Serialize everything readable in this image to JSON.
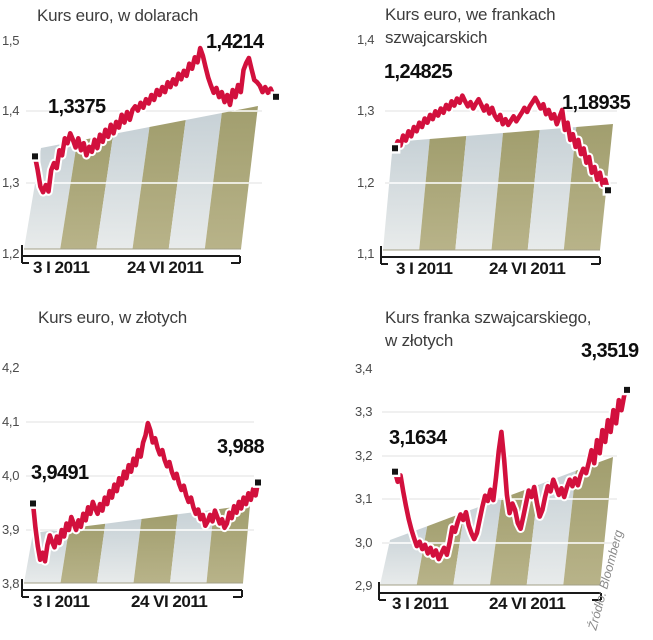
{
  "source_credit": "Źródło: Bloomberg",
  "colors": {
    "line": "#d2103d",
    "line_casing": "#ffffff",
    "marker": "#141414",
    "stripe_light_top": "#c7d1d6",
    "stripe_light_bottom": "#e8ebeb",
    "stripe_olive_top": "#a19e6e",
    "stripe_olive_bottom": "#b8b389",
    "grid_faint": "#e2e2e2",
    "grid_on_plane": "#ffffff",
    "plane_bottom_edge": "#a3a087",
    "axis": "#1a1a1a",
    "title_text": "#3d3d3d",
    "tick_text": "#4b4b4b",
    "source_text": "#8a8a8a"
  },
  "chart_data": [
    {
      "type": "line",
      "title": "Kurs euro, w dolarach",
      "title_lines": [
        "Kurs euro, w dolarach"
      ],
      "x_tick_labels": [
        "3 I 2011",
        "24 VI 2011"
      ],
      "y_tick_labels": [
        "1,5",
        "1,4",
        "1,3",
        "1,2"
      ],
      "y_tick_values": [
        1.5,
        1.4,
        1.3,
        1.2
      ],
      "ylim": [
        1.2,
        1.5
      ],
      "start_annotation": {
        "label": "1,3375",
        "value": 1.3375
      },
      "end_annotation": {
        "label": "1,4214",
        "value": 1.4214
      },
      "values": [
        1.3375,
        1.318,
        1.295,
        1.287,
        1.297,
        1.288,
        1.318,
        1.328,
        1.321,
        1.346,
        1.339,
        1.363,
        1.356,
        1.37,
        1.361,
        1.35,
        1.363,
        1.346,
        1.356,
        1.339,
        1.351,
        1.344,
        1.361,
        1.349,
        1.368,
        1.358,
        1.375,
        1.365,
        1.382,
        1.37,
        1.386,
        1.378,
        1.396,
        1.385,
        1.4,
        1.389,
        1.403,
        1.408,
        1.402,
        1.413,
        1.406,
        1.418,
        1.412,
        1.424,
        1.417,
        1.431,
        1.424,
        1.435,
        1.428,
        1.442,
        1.435,
        1.446,
        1.439,
        1.454,
        1.446,
        1.458,
        1.451,
        1.468,
        1.461,
        1.477,
        1.47,
        1.49,
        1.479,
        1.463,
        1.448,
        1.437,
        1.427,
        1.434,
        1.421,
        1.428,
        1.414,
        1.424,
        1.41,
        1.431,
        1.421,
        1.438,
        1.428,
        1.459,
        1.469,
        1.476,
        1.46,
        1.445,
        1.442,
        1.437,
        1.428,
        1.435,
        1.427,
        1.433,
        1.424,
        1.4214
      ]
    },
    {
      "type": "line",
      "title": "Kurs euro, we frankach szwajcarskich",
      "title_lines": [
        "Kurs euro, we frankach",
        "szwajcarskich"
      ],
      "x_tick_labels": [
        "3 I 2011",
        "24 VI 2011"
      ],
      "y_tick_labels": [
        "1,4",
        "1,3",
        "1,2",
        "1,1"
      ],
      "y_tick_values": [
        1.4,
        1.3,
        1.2,
        1.1
      ],
      "ylim": [
        1.1,
        1.4
      ],
      "start_annotation": {
        "label": "1,24825",
        "value": 1.24825
      },
      "end_annotation": {
        "label": "1,18935",
        "value": 1.18935
      },
      "values": [
        1.24825,
        1.258,
        1.252,
        1.266,
        1.259,
        1.272,
        1.265,
        1.278,
        1.272,
        1.284,
        1.278,
        1.29,
        1.284,
        1.295,
        1.289,
        1.3,
        1.294,
        1.304,
        1.298,
        1.309,
        1.303,
        1.314,
        1.308,
        1.318,
        1.312,
        1.322,
        1.314,
        1.307,
        1.313,
        1.304,
        1.311,
        1.317,
        1.309,
        1.301,
        1.308,
        1.297,
        1.305,
        1.294,
        1.288,
        1.295,
        1.282,
        1.289,
        1.281,
        1.287,
        1.293,
        1.286,
        1.292,
        1.298,
        1.305,
        1.299,
        1.307,
        1.313,
        1.319,
        1.312,
        1.304,
        1.31,
        1.296,
        1.302,
        1.29,
        1.296,
        1.282,
        1.292,
        1.302,
        1.274,
        1.284,
        1.26,
        1.268,
        1.25,
        1.26,
        1.24,
        1.248,
        1.228,
        1.236,
        1.214,
        1.222,
        1.204,
        1.214,
        1.197,
        1.204,
        1.18935
      ]
    },
    {
      "type": "line",
      "title": "Kurs euro, w złotych",
      "title_lines": [
        "Kurs euro, w złotych"
      ],
      "x_tick_labels": [
        "3 I 2011",
        "24 VI 2011"
      ],
      "y_tick_labels": [
        "4,2",
        "4,1",
        "4,0",
        "3,9",
        "3,8"
      ],
      "y_tick_values": [
        4.2,
        4.1,
        4.0,
        3.9,
        3.8
      ],
      "ylim": [
        3.8,
        4.2
      ],
      "start_annotation": {
        "label": "3,9491",
        "value": 3.9491
      },
      "end_annotation": {
        "label": "3,988",
        "value": 3.988
      },
      "values": [
        3.9491,
        3.905,
        3.87,
        3.845,
        3.858,
        3.842,
        3.872,
        3.89,
        3.878,
        3.868,
        3.888,
        3.876,
        3.9,
        3.888,
        3.912,
        3.9,
        3.924,
        3.912,
        3.9,
        3.918,
        3.906,
        3.93,
        3.918,
        3.942,
        3.93,
        3.952,
        3.94,
        3.93,
        3.948,
        3.936,
        3.96,
        3.948,
        3.972,
        3.96,
        3.984,
        3.972,
        3.996,
        3.984,
        4.008,
        3.996,
        4.02,
        4.008,
        4.032,
        4.02,
        4.048,
        4.036,
        4.062,
        4.075,
        4.098,
        4.085,
        4.062,
        4.07,
        4.052,
        4.04,
        4.048,
        4.03,
        4.018,
        4.026,
        4.008,
        3.996,
        4.004,
        3.986,
        3.974,
        3.982,
        3.964,
        3.952,
        3.96,
        3.942,
        3.93,
        3.938,
        3.92,
        3.928,
        3.908,
        3.916,
        3.928,
        3.916,
        3.936,
        3.924,
        3.912,
        3.92,
        3.904,
        3.912,
        3.932,
        3.922,
        3.944,
        3.932,
        3.952,
        3.94,
        3.96,
        3.948,
        3.968,
        3.956,
        3.976,
        3.964,
        3.988
      ]
    },
    {
      "type": "line",
      "title": "Kurs franka szwajcarskiego, w złotych",
      "title_lines": [
        "Kurs franka szwajcarskiego,",
        "w złotych"
      ],
      "x_tick_labels": [
        "3 I 2011",
        "24 VI 2011"
      ],
      "y_tick_labels": [
        "3,4",
        "3,3",
        "3,2",
        "3,1",
        "3,0",
        "2,9"
      ],
      "y_tick_values": [
        3.4,
        3.3,
        3.2,
        3.1,
        3.0,
        2.9
      ],
      "ylim": [
        2.9,
        3.4
      ],
      "start_annotation": {
        "label": "3,1634",
        "value": 3.1634
      },
      "end_annotation": {
        "label": "3,3519",
        "value": 3.3519
      },
      "values": [
        3.1634,
        3.14,
        3.155,
        3.118,
        3.085,
        3.055,
        3.03,
        3.01,
        2.992,
        3.002,
        2.985,
        2.995,
        2.975,
        2.988,
        2.97,
        2.982,
        2.962,
        2.975,
        2.988,
        2.972,
        3.0,
        3.035,
        3.025,
        3.048,
        3.065,
        3.052,
        3.07,
        3.04,
        3.022,
        3.008,
        3.022,
        3.052,
        3.082,
        3.108,
        3.096,
        3.122,
        3.098,
        3.15,
        3.21,
        3.255,
        3.19,
        3.11,
        3.068,
        3.09,
        3.075,
        3.045,
        3.032,
        3.06,
        3.09,
        3.12,
        3.105,
        3.128,
        3.092,
        3.06,
        3.075,
        3.105,
        3.13,
        3.118,
        3.145,
        3.128,
        3.11,
        3.125,
        3.105,
        3.128,
        3.145,
        3.13,
        3.148,
        3.132,
        3.155,
        3.17,
        3.16,
        3.185,
        3.213,
        3.183,
        3.236,
        3.206,
        3.259,
        3.232,
        3.282,
        3.255,
        3.305,
        3.275,
        3.328,
        3.305,
        3.34,
        3.3519
      ]
    }
  ]
}
